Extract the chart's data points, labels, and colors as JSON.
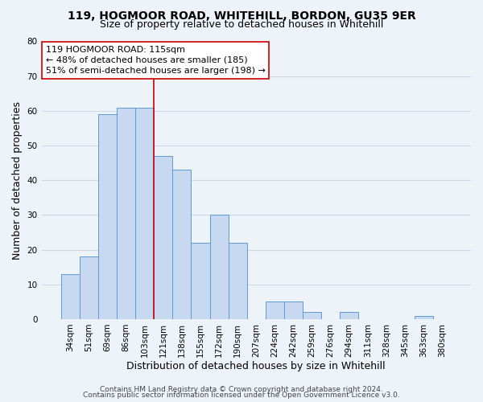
{
  "title1": "119, HOGMOOR ROAD, WHITEHILL, BORDON, GU35 9ER",
  "title2": "Size of property relative to detached houses in Whitehill",
  "xlabel": "Distribution of detached houses by size in Whitehill",
  "ylabel": "Number of detached properties",
  "bar_labels": [
    "34sqm",
    "51sqm",
    "69sqm",
    "86sqm",
    "103sqm",
    "121sqm",
    "138sqm",
    "155sqm",
    "172sqm",
    "190sqm",
    "207sqm",
    "224sqm",
    "242sqm",
    "259sqm",
    "276sqm",
    "294sqm",
    "311sqm",
    "328sqm",
    "345sqm",
    "363sqm",
    "380sqm"
  ],
  "bar_values": [
    13,
    18,
    59,
    61,
    61,
    47,
    43,
    22,
    30,
    22,
    0,
    5,
    5,
    2,
    0,
    2,
    0,
    0,
    0,
    1,
    0
  ],
  "bar_color": "#c6d9f0",
  "bar_edge_color": "#5b9bd5",
  "ylim": [
    0,
    80
  ],
  "yticks": [
    0,
    10,
    20,
    30,
    40,
    50,
    60,
    70,
    80
  ],
  "vline_index": 5,
  "vline_color": "#cc0000",
  "annotation_title": "119 HOGMOOR ROAD: 115sqm",
  "annotation_line1": "← 48% of detached houses are smaller (185)",
  "annotation_line2": "51% of semi-detached houses are larger (198) →",
  "annotation_box_color": "#ffffff",
  "annotation_box_edge": "#cc0000",
  "footer1": "Contains HM Land Registry data © Crown copyright and database right 2024.",
  "footer2": "Contains public sector information licensed under the Open Government Licence v3.0.",
  "background_color": "#eef2f9",
  "grid_color": "#d0d8e8",
  "title_fontsize": 10,
  "subtitle_fontsize": 9,
  "axis_label_fontsize": 9,
  "tick_fontsize": 7.5,
  "annotation_fontsize": 8,
  "footer_fontsize": 6.5
}
